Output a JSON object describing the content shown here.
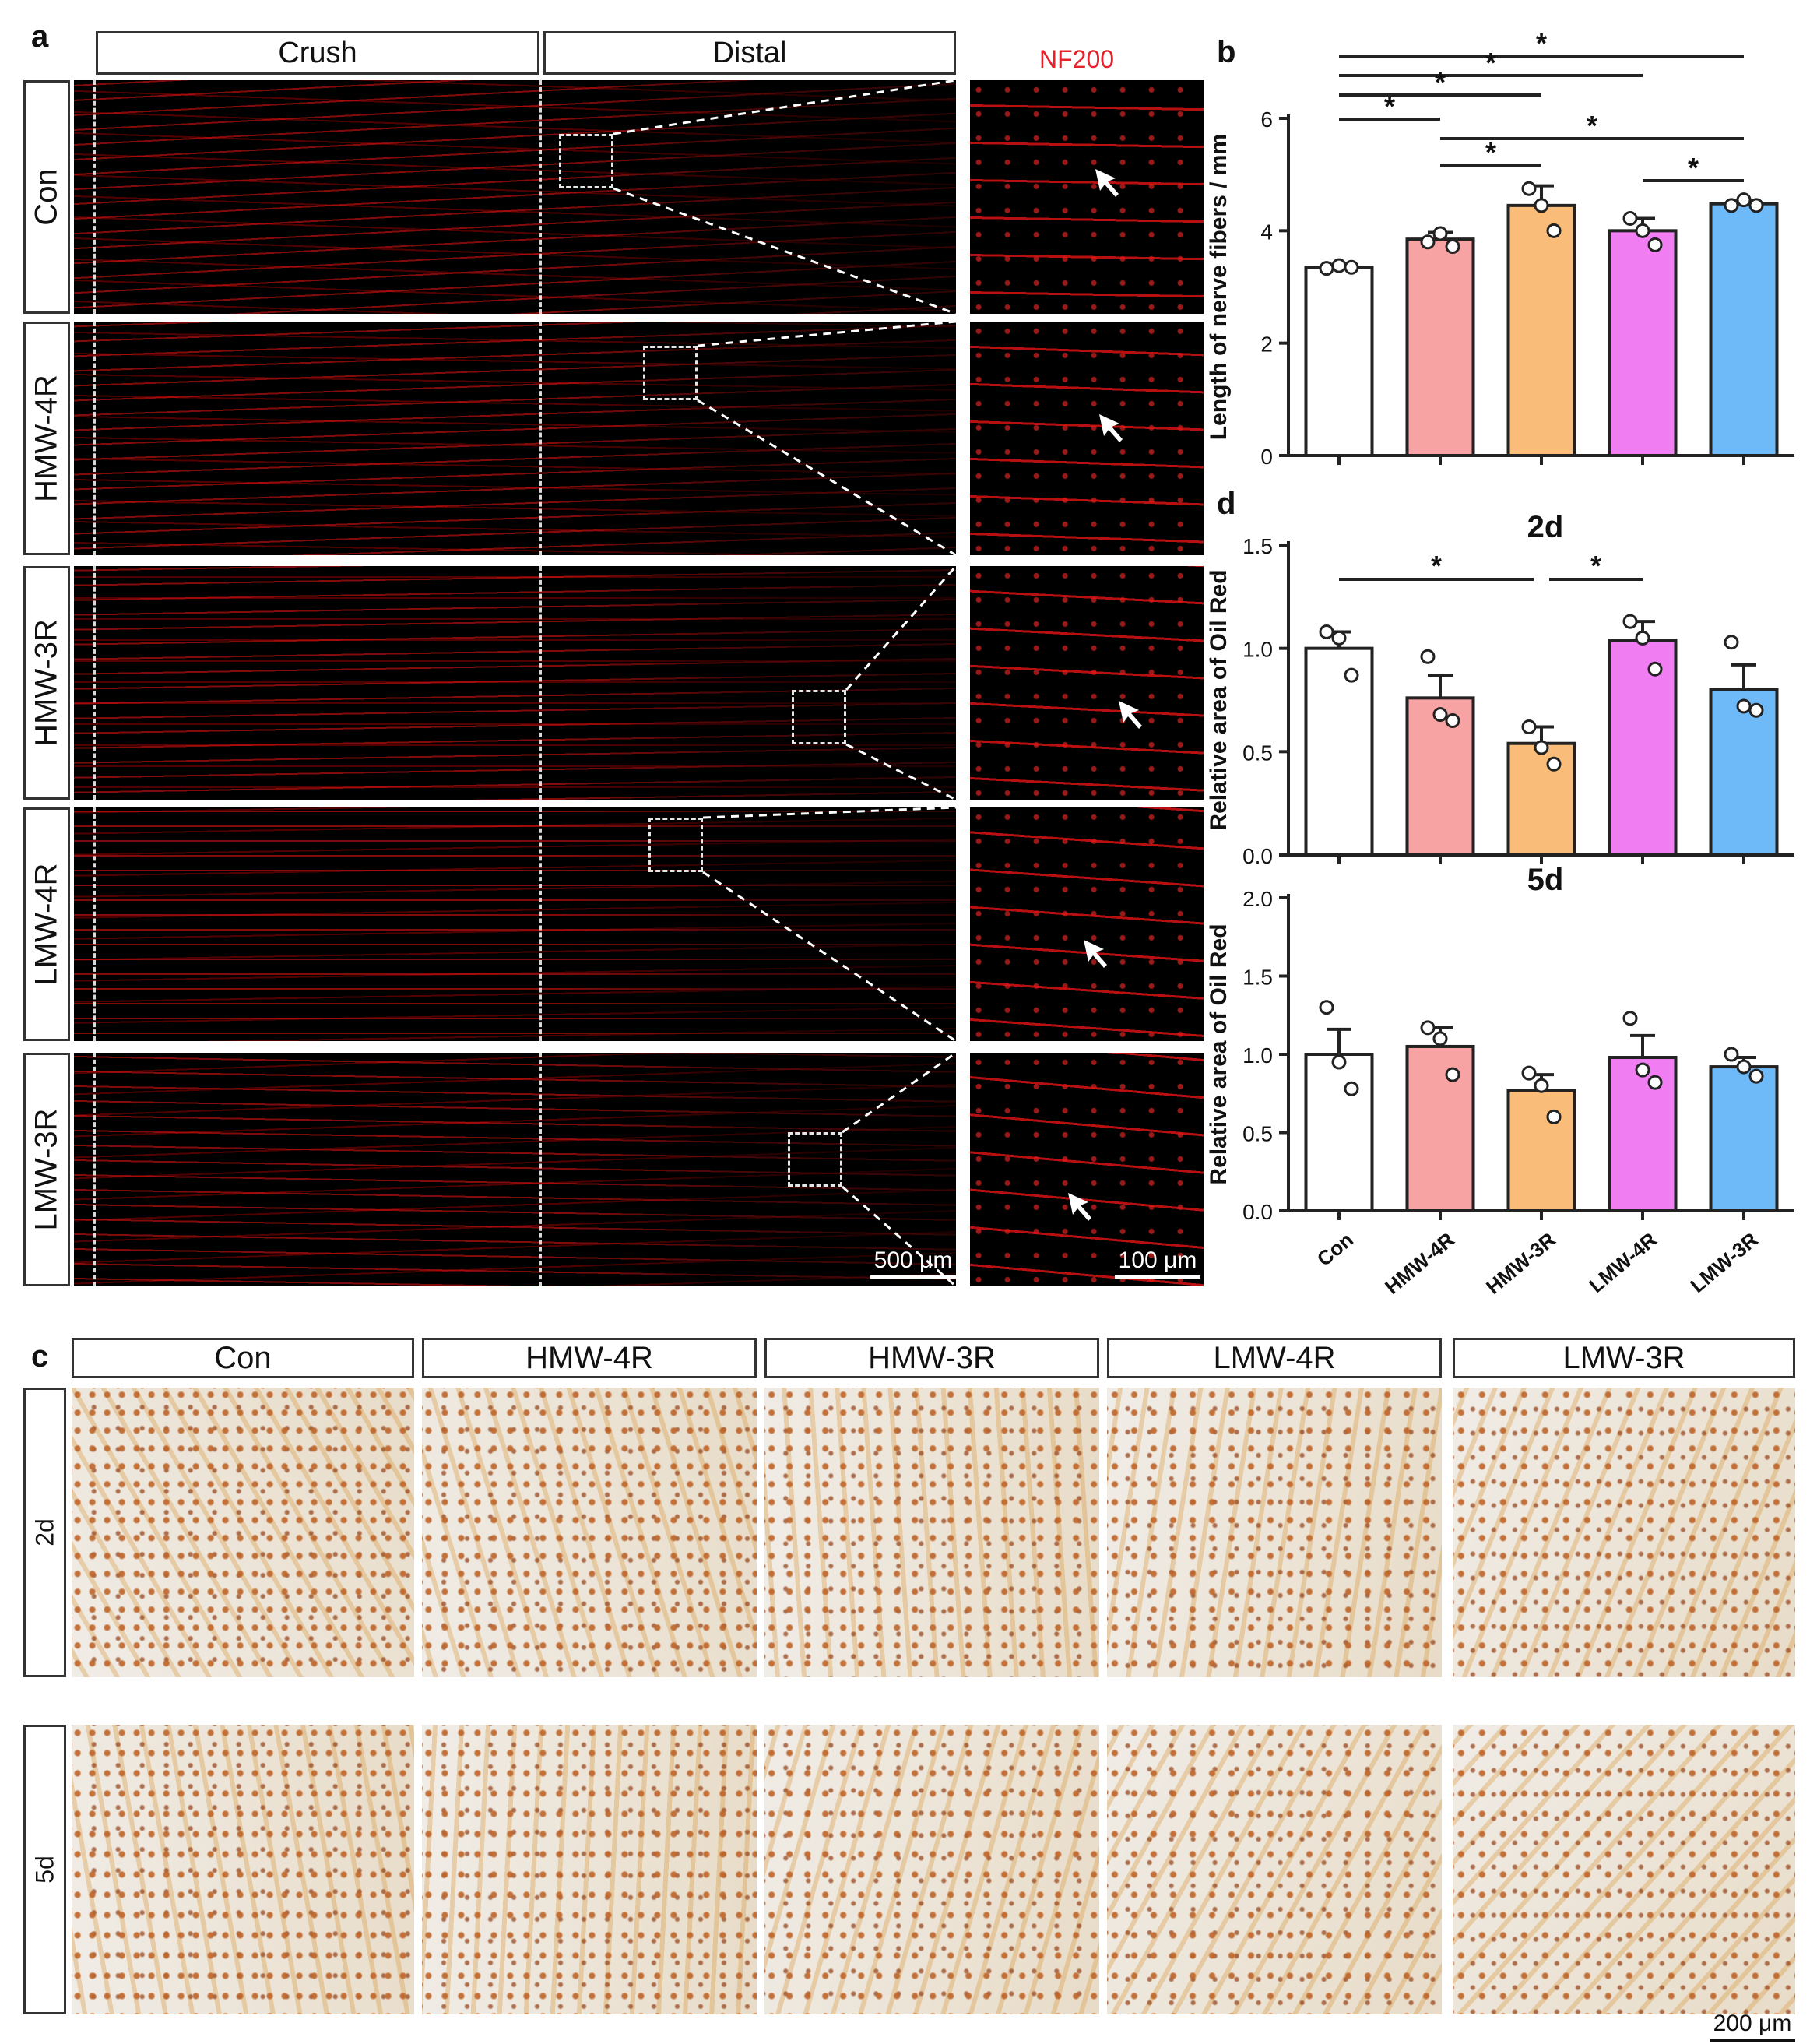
{
  "panels": {
    "a": "a",
    "b": "b",
    "c": "c",
    "d": "d"
  },
  "panel_a": {
    "columns": {
      "crush": "Crush",
      "distal": "Distal",
      "marker": "NF200"
    },
    "rows": [
      "Con",
      "HMW-4R",
      "HMW-3R",
      "LMW-4R",
      "LMW-3R"
    ],
    "scalebar_main": "500 μm",
    "scalebar_zoom": "100 μm"
  },
  "panel_c": {
    "columns": [
      "Con",
      "HMW-4R",
      "HMW-3R",
      "LMW-4R",
      "LMW-3R"
    ],
    "rows": [
      "2d",
      "5d"
    ],
    "scalebar": "200 μm"
  },
  "chart_data": [
    {
      "id": "b",
      "type": "bar",
      "ylabel": "Length of nerve fibers / mm",
      "ylim": [
        0,
        6
      ],
      "yticks": [
        "0",
        "2",
        "4",
        "6"
      ],
      "categories": [
        "Con",
        "HMW-4R",
        "HMW-3R",
        "LMW-4R",
        "LMW-3R"
      ],
      "values": [
        3.35,
        3.85,
        4.45,
        4.0,
        4.48
      ],
      "errors": [
        0.05,
        0.12,
        0.35,
        0.22,
        0.05
      ],
      "points": [
        [
          3.33,
          3.38,
          3.35
        ],
        [
          3.8,
          3.95,
          3.72
        ],
        [
          4.75,
          4.45,
          4.0
        ],
        [
          4.22,
          4.0,
          3.75
        ],
        [
          4.45,
          4.55,
          4.45
        ]
      ],
      "colors": [
        "#ffffff",
        "#f8a3a3",
        "#f9bd79",
        "#f07df2",
        "#6eb9f7"
      ],
      "significance": [
        {
          "from": 0,
          "to": 4,
          "label": "*"
        },
        {
          "from": 0,
          "to": 3,
          "label": "*"
        },
        {
          "from": 0,
          "to": 2,
          "label": "*"
        },
        {
          "from": 0,
          "to": 1,
          "label": "*"
        },
        {
          "from": 1,
          "to": 4,
          "label": "*"
        },
        {
          "from": 1,
          "to": 2,
          "label": "*"
        },
        {
          "from": 3,
          "to": 4,
          "label": "*"
        }
      ]
    },
    {
      "id": "d-2d",
      "type": "bar",
      "title": "2d",
      "ylabel": "Relative area of Oil Red",
      "ylim": [
        0,
        1.5
      ],
      "yticks": [
        "0.0",
        "0.5",
        "1.0",
        "1.5"
      ],
      "categories": [
        "Con",
        "HMW-4R",
        "HMW-3R",
        "LMW-4R",
        "LMW-3R"
      ],
      "values": [
        1.0,
        0.76,
        0.54,
        1.04,
        0.8
      ],
      "errors": [
        0.08,
        0.11,
        0.08,
        0.09,
        0.12
      ],
      "points": [
        [
          1.08,
          1.05,
          0.87
        ],
        [
          0.96,
          0.68,
          0.65
        ],
        [
          0.62,
          0.52,
          0.44
        ],
        [
          1.13,
          1.05,
          0.9
        ],
        [
          1.03,
          0.72,
          0.7
        ]
      ],
      "colors": [
        "#ffffff",
        "#f8a3a3",
        "#f9bd79",
        "#f07df2",
        "#6eb9f7"
      ],
      "significance": [
        {
          "from": 0,
          "to": 2,
          "label": "*"
        },
        {
          "from": 2,
          "to": 3,
          "label": "*"
        }
      ]
    },
    {
      "id": "d-5d",
      "type": "bar",
      "title": "5d",
      "ylabel": "Relative area of Oil Red",
      "ylim": [
        0,
        2.0
      ],
      "yticks": [
        "0.0",
        "0.5",
        "1.0",
        "1.5",
        "2.0"
      ],
      "categories": [
        "Con",
        "HMW-4R",
        "HMW-3R",
        "LMW-4R",
        "LMW-3R"
      ],
      "values": [
        1.0,
        1.05,
        0.77,
        0.98,
        0.92
      ],
      "errors": [
        0.16,
        0.12,
        0.1,
        0.14,
        0.06
      ],
      "points": [
        [
          1.3,
          0.95,
          0.78
        ],
        [
          1.17,
          1.1,
          0.87
        ],
        [
          0.88,
          0.8,
          0.6
        ],
        [
          1.23,
          0.9,
          0.82
        ],
        [
          1.0,
          0.92,
          0.86
        ]
      ],
      "colors": [
        "#ffffff",
        "#f8a3a3",
        "#f9bd79",
        "#f07df2",
        "#6eb9f7"
      ],
      "significance": []
    }
  ]
}
